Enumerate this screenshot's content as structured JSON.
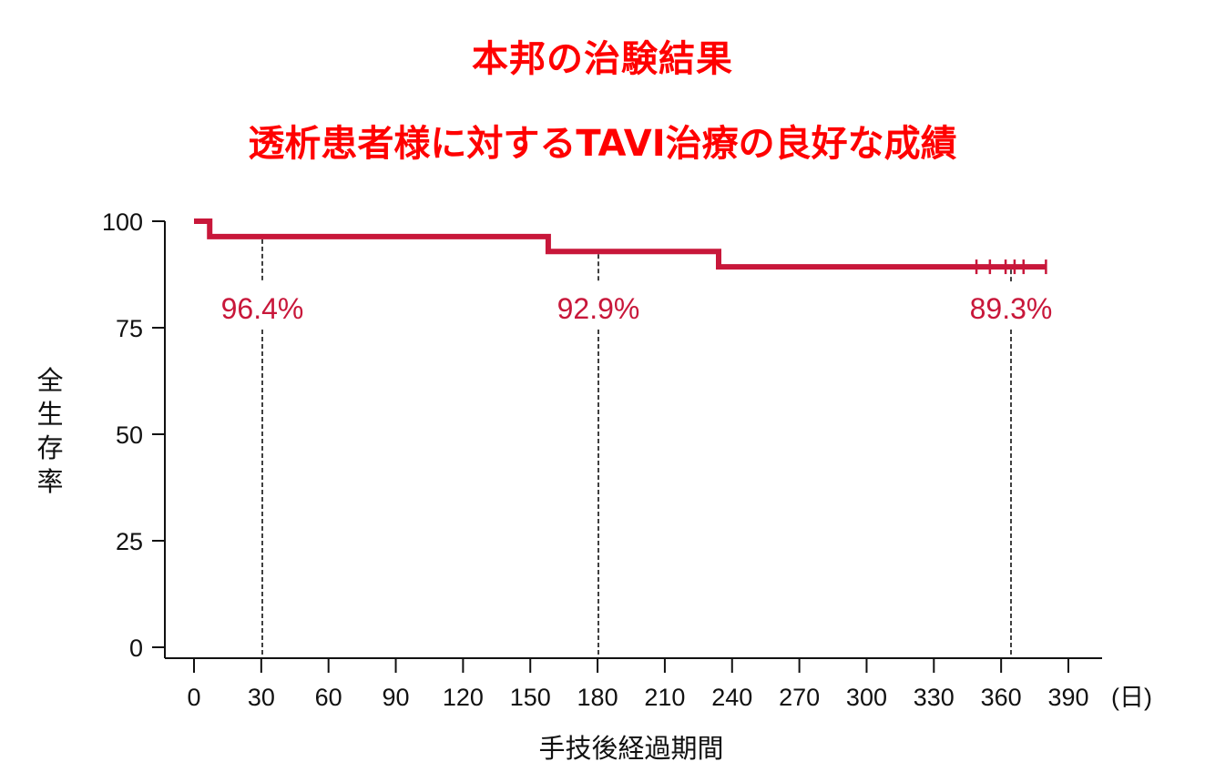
{
  "titles": {
    "line1": "本邦の治験結果",
    "line2": "透析患者様に対するTAVI治療の良好な成績"
  },
  "colors": {
    "title": "#ff0000",
    "curve": "#c8173a",
    "axis": "#111111"
  },
  "chart_data": {
    "type": "line",
    "subtype": "kaplan-meier step",
    "title": "本邦の治験結果 / 透析患者様に対するTAVI治療の良好な成績",
    "xlabel": "手技後経過期間",
    "xunit": "(日)",
    "ylabel": "全生存率",
    "xlim": [
      0,
      390
    ],
    "ylim": [
      0,
      100
    ],
    "x_ticks": [
      0,
      30,
      60,
      90,
      120,
      150,
      180,
      210,
      240,
      270,
      300,
      330,
      360,
      390
    ],
    "y_ticks": [
      0,
      25,
      50,
      75,
      100
    ],
    "grid": false,
    "legend": null,
    "series": [
      {
        "name": "全生存率",
        "steps": [
          {
            "x": 0,
            "y": 100
          },
          {
            "x": 7,
            "y": 96.4
          },
          {
            "x": 158,
            "y": 92.9
          },
          {
            "x": 234,
            "y": 89.3
          },
          {
            "x": 380,
            "y": 89.3
          }
        ],
        "censor_x": [
          349,
          355,
          362,
          366,
          370,
          380
        ]
      }
    ],
    "annotations": [
      {
        "x": 30,
        "label": "96.4%",
        "value": 96.4
      },
      {
        "x": 180,
        "label": "92.9%",
        "value": 92.9
      },
      {
        "x": 365,
        "label": "89.3%",
        "value": 89.3
      }
    ]
  }
}
